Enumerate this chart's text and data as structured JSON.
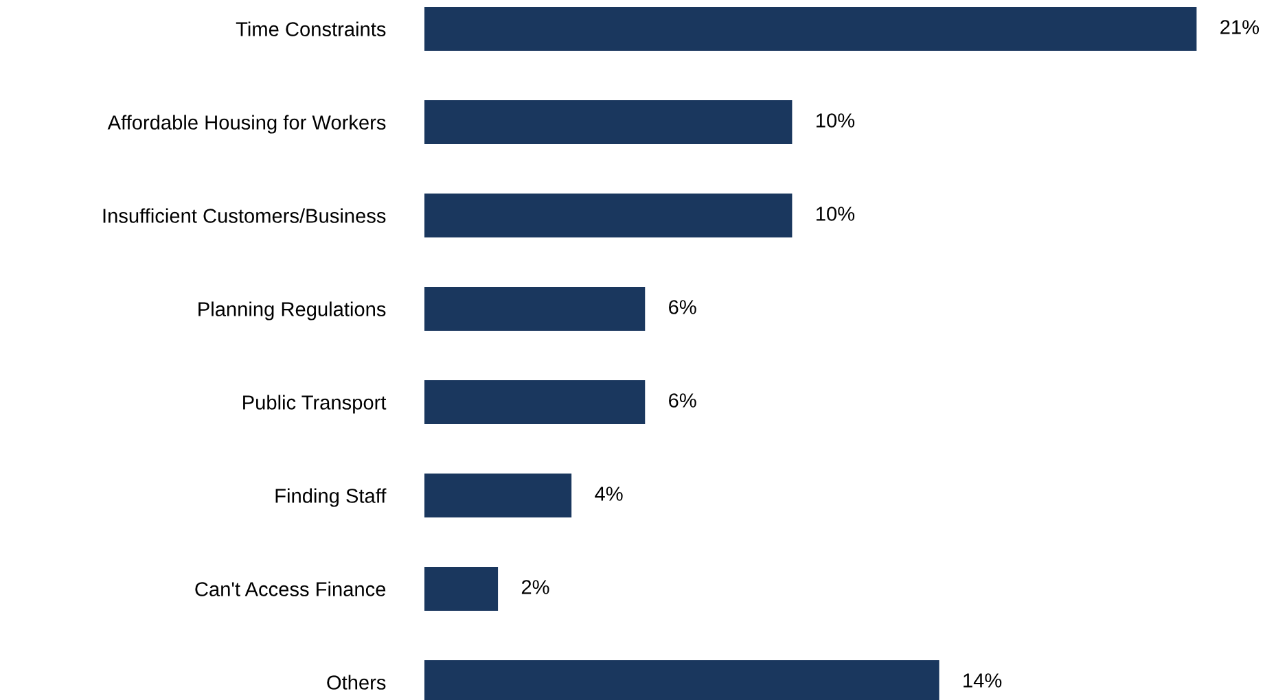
{
  "chart_data": {
    "type": "bar",
    "orientation": "horizontal",
    "categories": [
      "Time Constraints",
      "Affordable Housing for Workers",
      "Insufficient Customers/Business",
      "Planning Regulations",
      "Public Transport",
      "Finding Staff",
      "Can't Access Finance",
      "Others"
    ],
    "values": [
      21,
      10,
      10,
      6,
      6,
      4,
      2,
      14
    ],
    "value_labels": [
      "21%",
      "10%",
      "10%",
      "6%",
      "6%",
      "4%",
      "2%",
      "14%"
    ],
    "color": "#1a375e"
  }
}
